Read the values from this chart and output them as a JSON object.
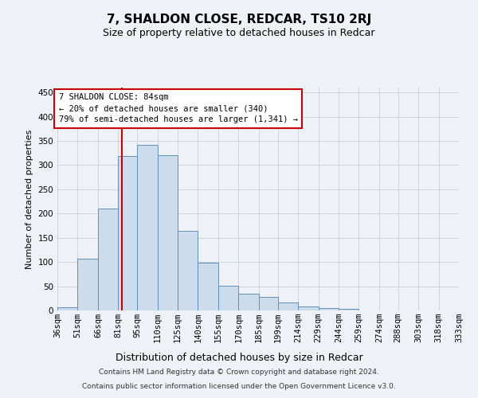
{
  "title": "7, SHALDON CLOSE, REDCAR, TS10 2RJ",
  "subtitle": "Size of property relative to detached houses in Redcar",
  "xlabel": "Distribution of detached houses by size in Redcar",
  "ylabel": "Number of detached properties",
  "bar_color": "#ccdcec",
  "bar_edge_color": "#6090b8",
  "grid_color": "#c8d0dc",
  "vline_color": "#cc0000",
  "vline_x": 84,
  "annotation_text": "7 SHALDON CLOSE: 84sqm\n← 20% of detached houses are smaller (340)\n79% of semi-detached houses are larger (1,341) →",
  "annotation_box_color": "#ffffff",
  "annotation_box_edge": "#cc0000",
  "bins": [
    36,
    51,
    66,
    81,
    95,
    110,
    125,
    140,
    155,
    170,
    185,
    199,
    214,
    229,
    244,
    259,
    274,
    288,
    303,
    318,
    333
  ],
  "bin_labels": [
    "36sqm",
    "51sqm",
    "66sqm",
    "81sqm",
    "95sqm",
    "110sqm",
    "125sqm",
    "140sqm",
    "155sqm",
    "170sqm",
    "185sqm",
    "199sqm",
    "214sqm",
    "229sqm",
    "244sqm",
    "259sqm",
    "274sqm",
    "288sqm",
    "303sqm",
    "318sqm",
    "333sqm"
  ],
  "values": [
    7,
    107,
    210,
    318,
    342,
    320,
    165,
    98,
    51,
    35,
    28,
    16,
    9,
    5,
    4,
    0,
    0,
    0,
    0,
    0
  ],
  "ylim": [
    0,
    460
  ],
  "yticks": [
    0,
    50,
    100,
    150,
    200,
    250,
    300,
    350,
    400,
    450
  ],
  "footer_line1": "Contains HM Land Registry data © Crown copyright and database right 2024.",
  "footer_line2": "Contains public sector information licensed under the Open Government Licence v3.0.",
  "bg_color": "#eef2f7",
  "title_fontsize": 11,
  "subtitle_fontsize": 9,
  "ylabel_fontsize": 8,
  "xlabel_fontsize": 9,
  "tick_fontsize": 7.5,
  "annotation_fontsize": 7.5,
  "footer_fontsize": 6.5
}
